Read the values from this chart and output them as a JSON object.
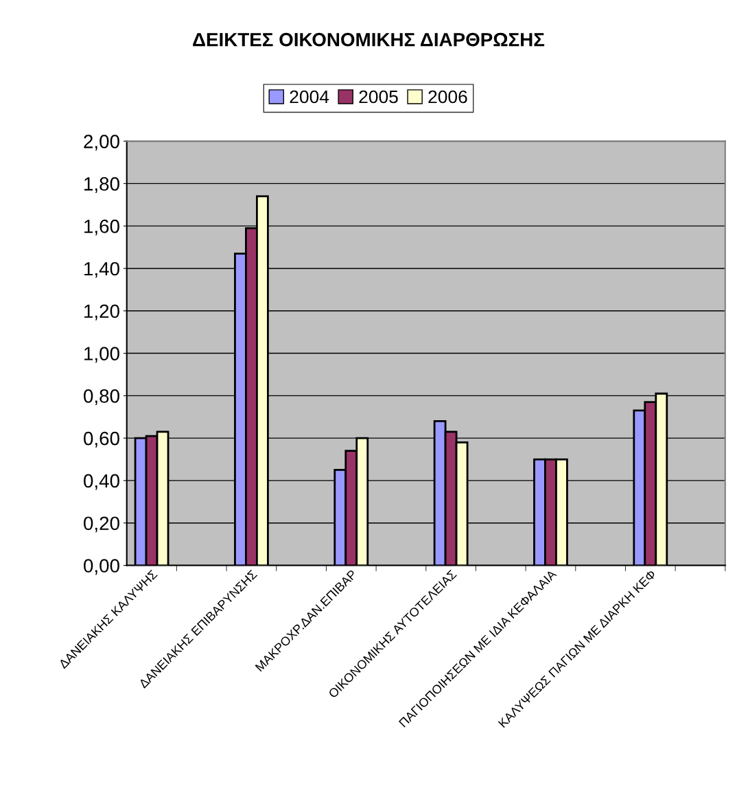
{
  "chart_data": {
    "type": "bar",
    "title": "ΔΕΙΚΤΕΣ ΟΙΚΟΝΟΜΙΚΗΣ ΔΙΑΡΘΡΩΣΗΣ",
    "categories": [
      "ΔΑΝΕΙΑΚΗΣ ΚΑΛΥΨΗΣ",
      null,
      "ΔΑΝΕΙΑΚΗΣ ΕΠΙΒΑΡΥΝΣΗΣ",
      null,
      "ΜΑΚΡΟΧΡ.ΔΑΝ.ΕΠΙΒΑΡ",
      null,
      "ΟΙΚΟΝΟΜΙΚΗΣ ΑΥΤΟΤΕΛΕΙΑΣ",
      null,
      "ΠΑΓΙΟΠΟΙΗΣΕΩΝ ΜΕ ΙΔΙΑ ΚΕΦΑΛΑΙΑ",
      null,
      "ΚΑΛΥΨΕΩΣ ΠΑΓΙΩΝ ΜΕ ΔΙΑΡΚΗ ΚΕΦ",
      null
    ],
    "series": [
      {
        "name": "2004",
        "color": "#9999ff",
        "values": [
          0.6,
          null,
          1.47,
          null,
          0.45,
          null,
          0.68,
          null,
          0.5,
          null,
          0.73,
          null
        ]
      },
      {
        "name": "2005",
        "color": "#993366",
        "values": [
          0.61,
          null,
          1.59,
          null,
          0.54,
          null,
          0.63,
          null,
          0.5,
          null,
          0.77,
          null
        ]
      },
      {
        "name": "2006",
        "color": "#ffffcc",
        "values": [
          0.63,
          null,
          1.74,
          null,
          0.6,
          null,
          0.58,
          null,
          0.5,
          null,
          0.81,
          null
        ]
      }
    ],
    "ylim": [
      0,
      2
    ],
    "yticks": [
      {
        "value": 0,
        "label": "0,00"
      },
      {
        "value": 0.2,
        "label": "0,20"
      },
      {
        "value": 0.4,
        "label": "0,40"
      },
      {
        "value": 0.6,
        "label": "0,60"
      },
      {
        "value": 0.8,
        "label": "0,80"
      },
      {
        "value": 1.0,
        "label": "1,00"
      },
      {
        "value": 1.2,
        "label": "1,20"
      },
      {
        "value": 1.4,
        "label": "1,40"
      },
      {
        "value": 1.6,
        "label": "1,60"
      },
      {
        "value": 1.8,
        "label": "1,80"
      },
      {
        "value": 2.0,
        "label": "2,00"
      }
    ],
    "grid": "y",
    "legend": "top"
  }
}
